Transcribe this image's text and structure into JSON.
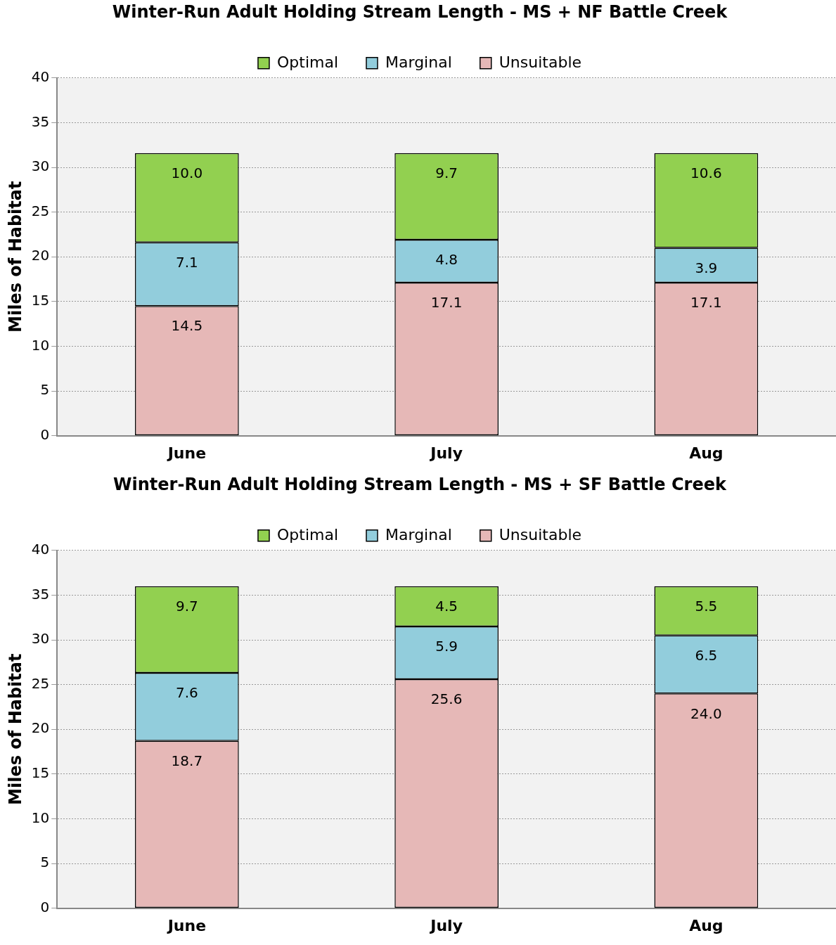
{
  "chart_data": [
    {
      "type": "bar",
      "title": "Winter-Run Adult Holding Stream Length - MS + NF Battle Creek",
      "ylabel": "Miles of Habitat",
      "categories": [
        "June",
        "July",
        "Aug"
      ],
      "stacked": true,
      "legend": "top",
      "grid": "y",
      "ylim": [
        0,
        40
      ],
      "yticks": [
        0,
        5,
        10,
        15,
        20,
        25,
        30,
        35,
        40
      ],
      "series": [
        {
          "name": "Unsuitable",
          "color": "#e6b8b7",
          "values": [
            14.5,
            17.1,
            17.1
          ],
          "value_labels": [
            "14.5",
            "17.1",
            "17.1"
          ]
        },
        {
          "name": "Marginal",
          "color": "#92cddc",
          "values": [
            7.1,
            4.8,
            3.9
          ],
          "value_labels": [
            "7.1",
            "4.8",
            "3.9"
          ]
        },
        {
          "name": "Optimal",
          "color": "#92d050",
          "values": [
            10.0,
            9.7,
            10.6
          ],
          "value_labels": [
            "10.0",
            "9.7",
            "10.6"
          ]
        }
      ]
    },
    {
      "type": "bar",
      "title": "Winter-Run Adult Holding Stream Length - MS + SF Battle Creek",
      "ylabel": "Miles of Habitat",
      "categories": [
        "June",
        "July",
        "Aug"
      ],
      "stacked": true,
      "legend": "top",
      "grid": "y",
      "ylim": [
        0,
        40
      ],
      "yticks": [
        0,
        5,
        10,
        15,
        20,
        25,
        30,
        35,
        40
      ],
      "series": [
        {
          "name": "Unsuitable",
          "color": "#e6b8b7",
          "values": [
            18.7,
            25.6,
            24.0
          ],
          "value_labels": [
            "18.7",
            "25.6",
            "24.0"
          ]
        },
        {
          "name": "Marginal",
          "color": "#92cddc",
          "values": [
            7.6,
            5.9,
            6.5
          ],
          "value_labels": [
            "7.6",
            "5.9",
            "6.5"
          ]
        },
        {
          "name": "Optimal",
          "color": "#92d050",
          "values": [
            9.7,
            4.5,
            5.5
          ],
          "value_labels": [
            "9.7",
            "4.5",
            "5.5"
          ]
        }
      ]
    }
  ]
}
